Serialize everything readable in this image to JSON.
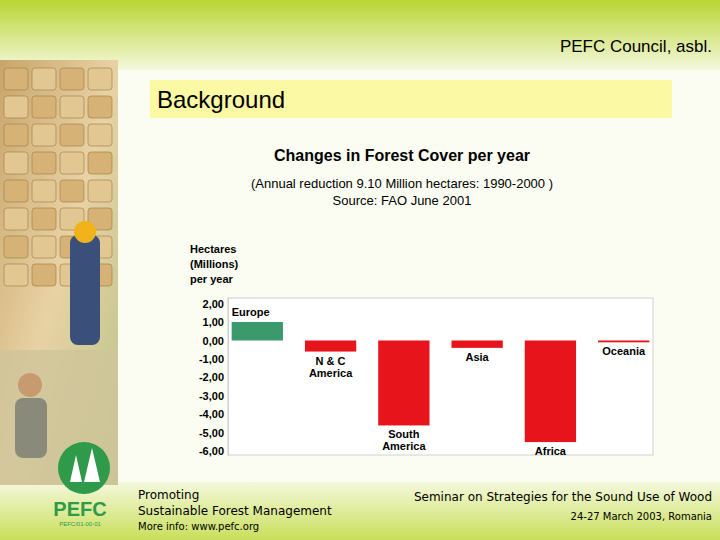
{
  "chart_data": {
    "type": "bar",
    "title": "Changes in Forest Cover per year",
    "subtitle": [
      "(Annual reduction 9.10 Million hectares: 1990-2000 )",
      "Source: FAO June 2001"
    ],
    "y_label": [
      "Hectares",
      "(Millions)",
      "per year"
    ],
    "categories": [
      "Europe",
      "N & C America",
      "South America",
      "Asia",
      "Africa",
      "Oceania"
    ],
    "values": [
      1.0,
      -0.6,
      -4.6,
      -0.4,
      -5.5,
      -0.1
    ],
    "colors": [
      "#3a9a6c",
      "#e8141b",
      "#e8141b",
      "#e8141b",
      "#e8141b",
      "#e8141b"
    ],
    "ylim": [
      -6.2,
      2.3
    ],
    "yticks": [
      {
        "value": 2,
        "label": "2,00"
      },
      {
        "value": 1,
        "label": "1,00"
      },
      {
        "value": 0,
        "label": "0,00"
      },
      {
        "value": -1,
        "label": "-1,00"
      },
      {
        "value": -2,
        "label": "-2,00"
      },
      {
        "value": -3,
        "label": "-3,00"
      },
      {
        "value": -4,
        "label": "-4,00"
      },
      {
        "value": -5,
        "label": "-5,00"
      },
      {
        "value": -6,
        "label": "-6,00"
      }
    ],
    "grid": false,
    "tick_labels": "y"
  },
  "slide": {
    "header": "PEFC Council, asbl.",
    "section": "Background",
    "footer_left": [
      "Promoting",
      "Sustainable Forest Management",
      "More info: www.pefc.org"
    ],
    "footer_right": [
      "Seminar on Strategies for the Sound Use of Wood",
      "24-27 March 2003, Romania"
    ],
    "logo": [
      "PEFC",
      "PEFC/01-00-01"
    ]
  }
}
